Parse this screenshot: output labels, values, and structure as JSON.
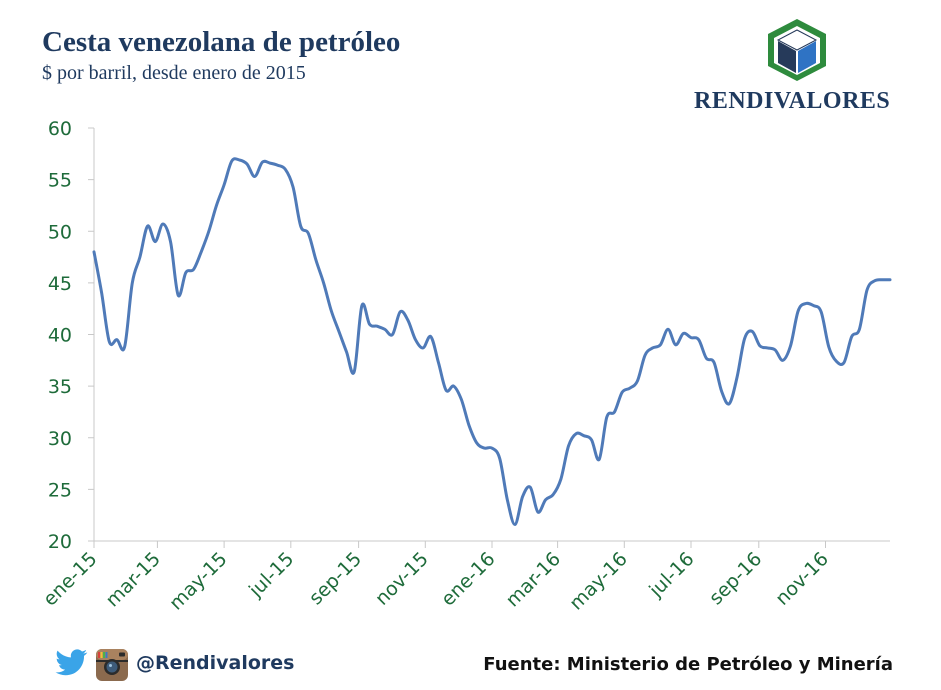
{
  "header": {
    "title": "Cesta venezolana de petróleo",
    "subtitle": "$ por barril, desde enero de 2015"
  },
  "logo": {
    "text": "RENDIVALORES"
  },
  "footer": {
    "handle": "@Rendivalores",
    "source": "Fuente: Ministerio de Petróleo y Minería",
    "twitter_icon": "twitter-bird-icon",
    "instagram_icon": "instagram-camera-icon"
  },
  "colors": {
    "line": "#4f7ab8",
    "axis_text": "#1e6b3a",
    "title": "#1f3a5f",
    "logo_green": "#2e8b3d",
    "logo_blue": "#2f73c4",
    "logo_navy": "#263a5a"
  },
  "chart_data": {
    "type": "line",
    "xlabel": "",
    "ylabel": "",
    "ylim": [
      20,
      60
    ],
    "yticks": [
      20,
      25,
      30,
      35,
      40,
      45,
      50,
      55,
      60
    ],
    "x_range": [
      "2015-01-02",
      "2016-12-30"
    ],
    "xtick_labels": [
      {
        "date": "2015-01-01",
        "label": "ene-15"
      },
      {
        "date": "2015-03-01",
        "label": "mar-15"
      },
      {
        "date": "2015-05-01",
        "label": "may-15"
      },
      {
        "date": "2015-07-01",
        "label": "jul-15"
      },
      {
        "date": "2015-09-01",
        "label": "sep-15"
      },
      {
        "date": "2015-11-01",
        "label": "nov-15"
      },
      {
        "date": "2016-01-01",
        "label": "ene-16"
      },
      {
        "date": "2016-03-01",
        "label": "mar-16"
      },
      {
        "date": "2016-05-01",
        "label": "may-16"
      },
      {
        "date": "2016-07-01",
        "label": "jul-16"
      },
      {
        "date": "2016-09-01",
        "label": "sep-16"
      },
      {
        "date": "2016-11-01",
        "label": "nov-16"
      }
    ],
    "grid": false,
    "series": [
      {
        "points": [
          [
            "2015-01-02",
            48.0
          ],
          [
            "2015-01-09",
            44.0
          ],
          [
            "2015-01-16",
            39.3
          ],
          [
            "2015-01-23",
            39.5
          ],
          [
            "2015-01-30",
            38.8
          ],
          [
            "2015-02-06",
            45.0
          ],
          [
            "2015-02-13",
            47.5
          ],
          [
            "2015-02-20",
            50.5
          ],
          [
            "2015-02-27",
            49.0
          ],
          [
            "2015-03-06",
            50.7
          ],
          [
            "2015-03-13",
            49.0
          ],
          [
            "2015-03-20",
            43.8
          ],
          [
            "2015-03-27",
            46.0
          ],
          [
            "2015-04-03",
            46.3
          ],
          [
            "2015-04-10",
            48.0
          ],
          [
            "2015-04-17",
            50.0
          ],
          [
            "2015-04-24",
            52.5
          ],
          [
            "2015-05-01",
            54.5
          ],
          [
            "2015-05-08",
            56.8
          ],
          [
            "2015-05-15",
            56.9
          ],
          [
            "2015-05-22",
            56.5
          ],
          [
            "2015-05-29",
            55.3
          ],
          [
            "2015-06-05",
            56.7
          ],
          [
            "2015-06-12",
            56.6
          ],
          [
            "2015-06-19",
            56.4
          ],
          [
            "2015-06-26",
            56.0
          ],
          [
            "2015-07-03",
            54.3
          ],
          [
            "2015-07-10",
            50.5
          ],
          [
            "2015-07-17",
            49.8
          ],
          [
            "2015-07-24",
            47.2
          ],
          [
            "2015-07-31",
            45.0
          ],
          [
            "2015-08-07",
            42.3
          ],
          [
            "2015-08-14",
            40.3
          ],
          [
            "2015-08-21",
            38.3
          ],
          [
            "2015-08-28",
            36.4
          ],
          [
            "2015-09-04",
            42.8
          ],
          [
            "2015-09-11",
            41.0
          ],
          [
            "2015-09-18",
            40.8
          ],
          [
            "2015-09-25",
            40.5
          ],
          [
            "2015-10-02",
            40.0
          ],
          [
            "2015-10-09",
            42.2
          ],
          [
            "2015-10-16",
            41.4
          ],
          [
            "2015-10-23",
            39.5
          ],
          [
            "2015-10-30",
            38.7
          ],
          [
            "2015-11-06",
            39.8
          ],
          [
            "2015-11-13",
            37.3
          ],
          [
            "2015-11-20",
            34.6
          ],
          [
            "2015-11-27",
            35.0
          ],
          [
            "2015-12-04",
            33.7
          ],
          [
            "2015-12-11",
            31.2
          ],
          [
            "2015-12-18",
            29.5
          ],
          [
            "2015-12-25",
            29.0
          ],
          [
            "2016-01-01",
            29.0
          ],
          [
            "2016-01-08",
            28.0
          ],
          [
            "2016-01-15",
            24.0
          ],
          [
            "2016-01-22",
            21.6
          ],
          [
            "2016-01-29",
            24.3
          ],
          [
            "2016-02-05",
            25.2
          ],
          [
            "2016-02-12",
            22.8
          ],
          [
            "2016-02-19",
            24.0
          ],
          [
            "2016-02-26",
            24.5
          ],
          [
            "2016-03-04",
            26.0
          ],
          [
            "2016-03-11",
            29.2
          ],
          [
            "2016-03-18",
            30.4
          ],
          [
            "2016-03-25",
            30.2
          ],
          [
            "2016-04-01",
            29.8
          ],
          [
            "2016-04-08",
            27.9
          ],
          [
            "2016-04-15",
            32.0
          ],
          [
            "2016-04-22",
            32.5
          ],
          [
            "2016-04-29",
            34.4
          ],
          [
            "2016-05-06",
            34.8
          ],
          [
            "2016-05-13",
            35.5
          ],
          [
            "2016-05-20",
            38.0
          ],
          [
            "2016-05-27",
            38.7
          ],
          [
            "2016-06-03",
            39.0
          ],
          [
            "2016-06-10",
            40.5
          ],
          [
            "2016-06-17",
            39.0
          ],
          [
            "2016-06-24",
            40.1
          ],
          [
            "2016-07-01",
            39.7
          ],
          [
            "2016-07-08",
            39.5
          ],
          [
            "2016-07-15",
            37.7
          ],
          [
            "2016-07-22",
            37.3
          ],
          [
            "2016-07-29",
            34.5
          ],
          [
            "2016-08-05",
            33.3
          ],
          [
            "2016-08-12",
            35.8
          ],
          [
            "2016-08-19",
            39.6
          ],
          [
            "2016-08-26",
            40.3
          ],
          [
            "2016-09-02",
            38.9
          ],
          [
            "2016-09-09",
            38.7
          ],
          [
            "2016-09-16",
            38.5
          ],
          [
            "2016-09-23",
            37.5
          ],
          [
            "2016-09-30",
            38.9
          ],
          [
            "2016-10-07",
            42.3
          ],
          [
            "2016-10-14",
            43.0
          ],
          [
            "2016-10-21",
            42.8
          ],
          [
            "2016-10-28",
            42.2
          ],
          [
            "2016-11-04",
            38.8
          ],
          [
            "2016-11-11",
            37.4
          ],
          [
            "2016-11-18",
            37.3
          ],
          [
            "2016-11-25",
            39.8
          ],
          [
            "2016-12-02",
            40.5
          ],
          [
            "2016-12-09",
            44.3
          ],
          [
            "2016-12-16",
            45.2
          ],
          [
            "2016-12-23",
            45.3
          ],
          [
            "2016-12-30",
            45.3
          ]
        ]
      }
    ]
  }
}
